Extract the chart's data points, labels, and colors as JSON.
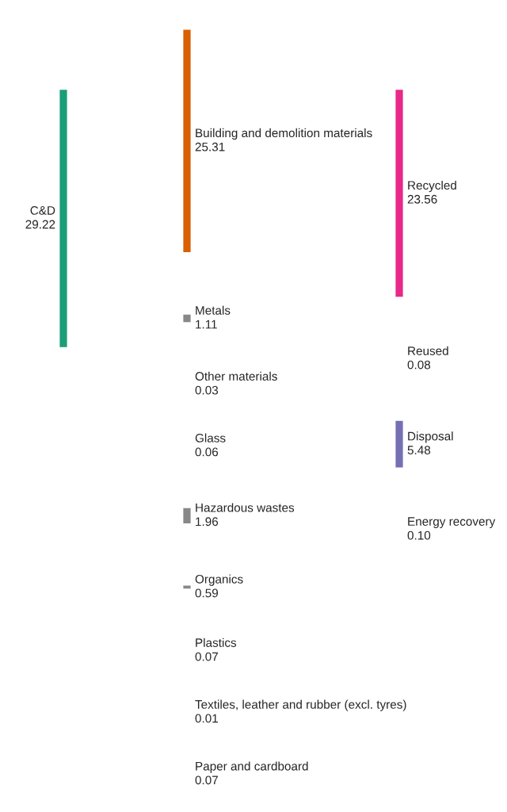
{
  "chart_data": {
    "type": "other",
    "categories": [
      "C&D",
      "Building and demolition materials",
      "Metals",
      "Other materials",
      "Glass",
      "Hazardous wastes",
      "Organics",
      "Plastics",
      "Textiles, leather and rubber (excl. tyres)",
      "Paper and cardboard",
      "Recycled",
      "Reused",
      "Disposal",
      "Energy recovery"
    ],
    "values": [
      29.22,
      25.31,
      1.11,
      0.03,
      0.06,
      1.96,
      0.59,
      0.07,
      0.01,
      0.07,
      23.56,
      0.08,
      5.48,
      0.1
    ],
    "value_labels": [
      "29.22",
      "25.31",
      "1.11",
      "0.03",
      "0.06",
      "1.96",
      "0.59",
      "0.07",
      "0.01",
      "0.07",
      "23.56",
      "0.08",
      "5.48",
      "0.10"
    ],
    "colors": [
      "#1b9e77",
      "#d95f02",
      "#888888",
      "#888888",
      "#888888",
      "#888888",
      "#888888",
      "#888888",
      "#888888",
      "#888888",
      "#e7298a",
      "#aaaaaa",
      "#7570b3",
      "#aaaaaa"
    ]
  }
}
